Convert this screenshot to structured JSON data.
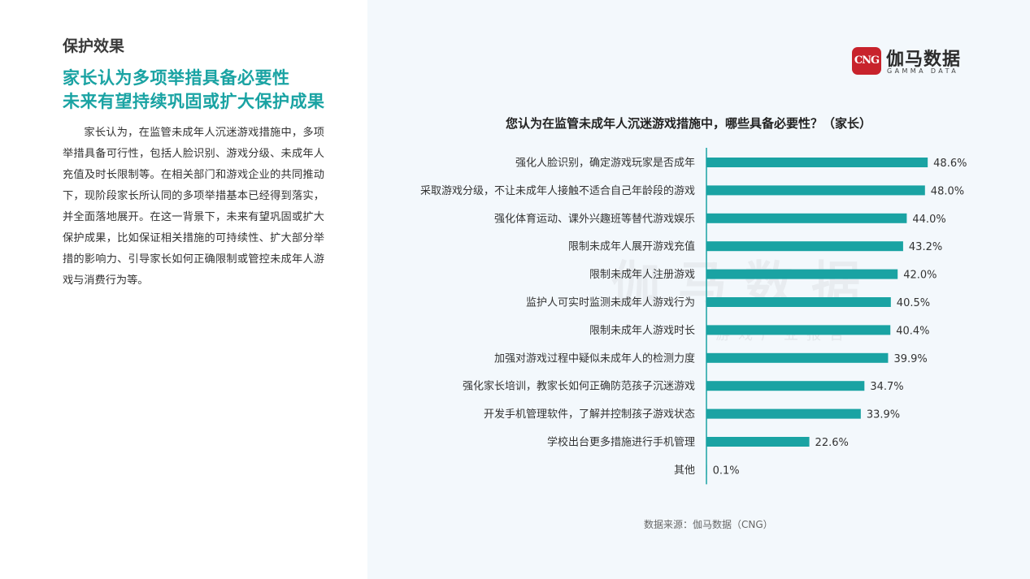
{
  "section_label": "保护效果",
  "headline": {
    "line1": "家长认为多项举措具备必要性",
    "line2": "未来有望持续巩固或扩大保护成果"
  },
  "body_text": "家长认为，在监管未成年人沉迷游戏措施中，多项举措具备可行性，包括人脸识别、游戏分级、未成年人充值及时长限制等。在相关部门和游戏企业的共同推动下，现阶段家长所认同的多项举措基本已经得到落实，并全面落地展开。在这一背景下，未来有望巩固或扩大保护成果，比如保证相关措施的可持续性、扩大部分举措的影响力、引导家长如何正确限制或管控未成年人游戏与消费行为等。",
  "logo": {
    "mark": "CNG",
    "name_cn": "伽马数据",
    "name_en": "GAMMA DATA"
  },
  "watermark": {
    "text": "伽马数据",
    "sub": "游戏产业报告"
  },
  "source": "数据来源：伽马数据（CNG）",
  "colors": {
    "bar": "#1aa3a3",
    "headline": "#1aa3a3",
    "axis": "#1aa3a3",
    "right_bg": "#f3f8fc"
  },
  "chart_data": {
    "type": "bar",
    "orientation": "horizontal",
    "title": "您认为在监管未成年人沉迷游戏措施中，哪些具备必要性？（家长）",
    "categories": [
      "强化人脸识别，确定游戏玩家是否成年",
      "采取游戏分级，不让未成年人接触不适合自己年龄段的游戏",
      "强化体育运动、课外兴趣班等替代游戏娱乐",
      "限制未成年人展开游戏充值",
      "限制未成年人注册游戏",
      "监护人可实时监测未成年人游戏行为",
      "限制未成年人游戏时长",
      "加强对游戏过程中疑似未成年人的检测力度",
      "强化家长培训，教家长如何正确防范孩子沉迷游戏",
      "开发手机管理软件，了解并控制孩子游戏状态",
      "学校出台更多措施进行手机管理",
      "其他"
    ],
    "values": [
      48.6,
      48.0,
      44.0,
      43.2,
      42.0,
      40.5,
      40.4,
      39.9,
      34.7,
      33.9,
      22.6,
      0.1
    ],
    "value_labels": [
      "48.6%",
      "48.0%",
      "44.0%",
      "43.2%",
      "42.0%",
      "40.5%",
      "40.4%",
      "39.9%",
      "34.7%",
      "33.9%",
      "22.6%",
      "0.1%"
    ],
    "unit": "%",
    "xlim": [
      0,
      50
    ],
    "grid": false,
    "legend": "none"
  }
}
